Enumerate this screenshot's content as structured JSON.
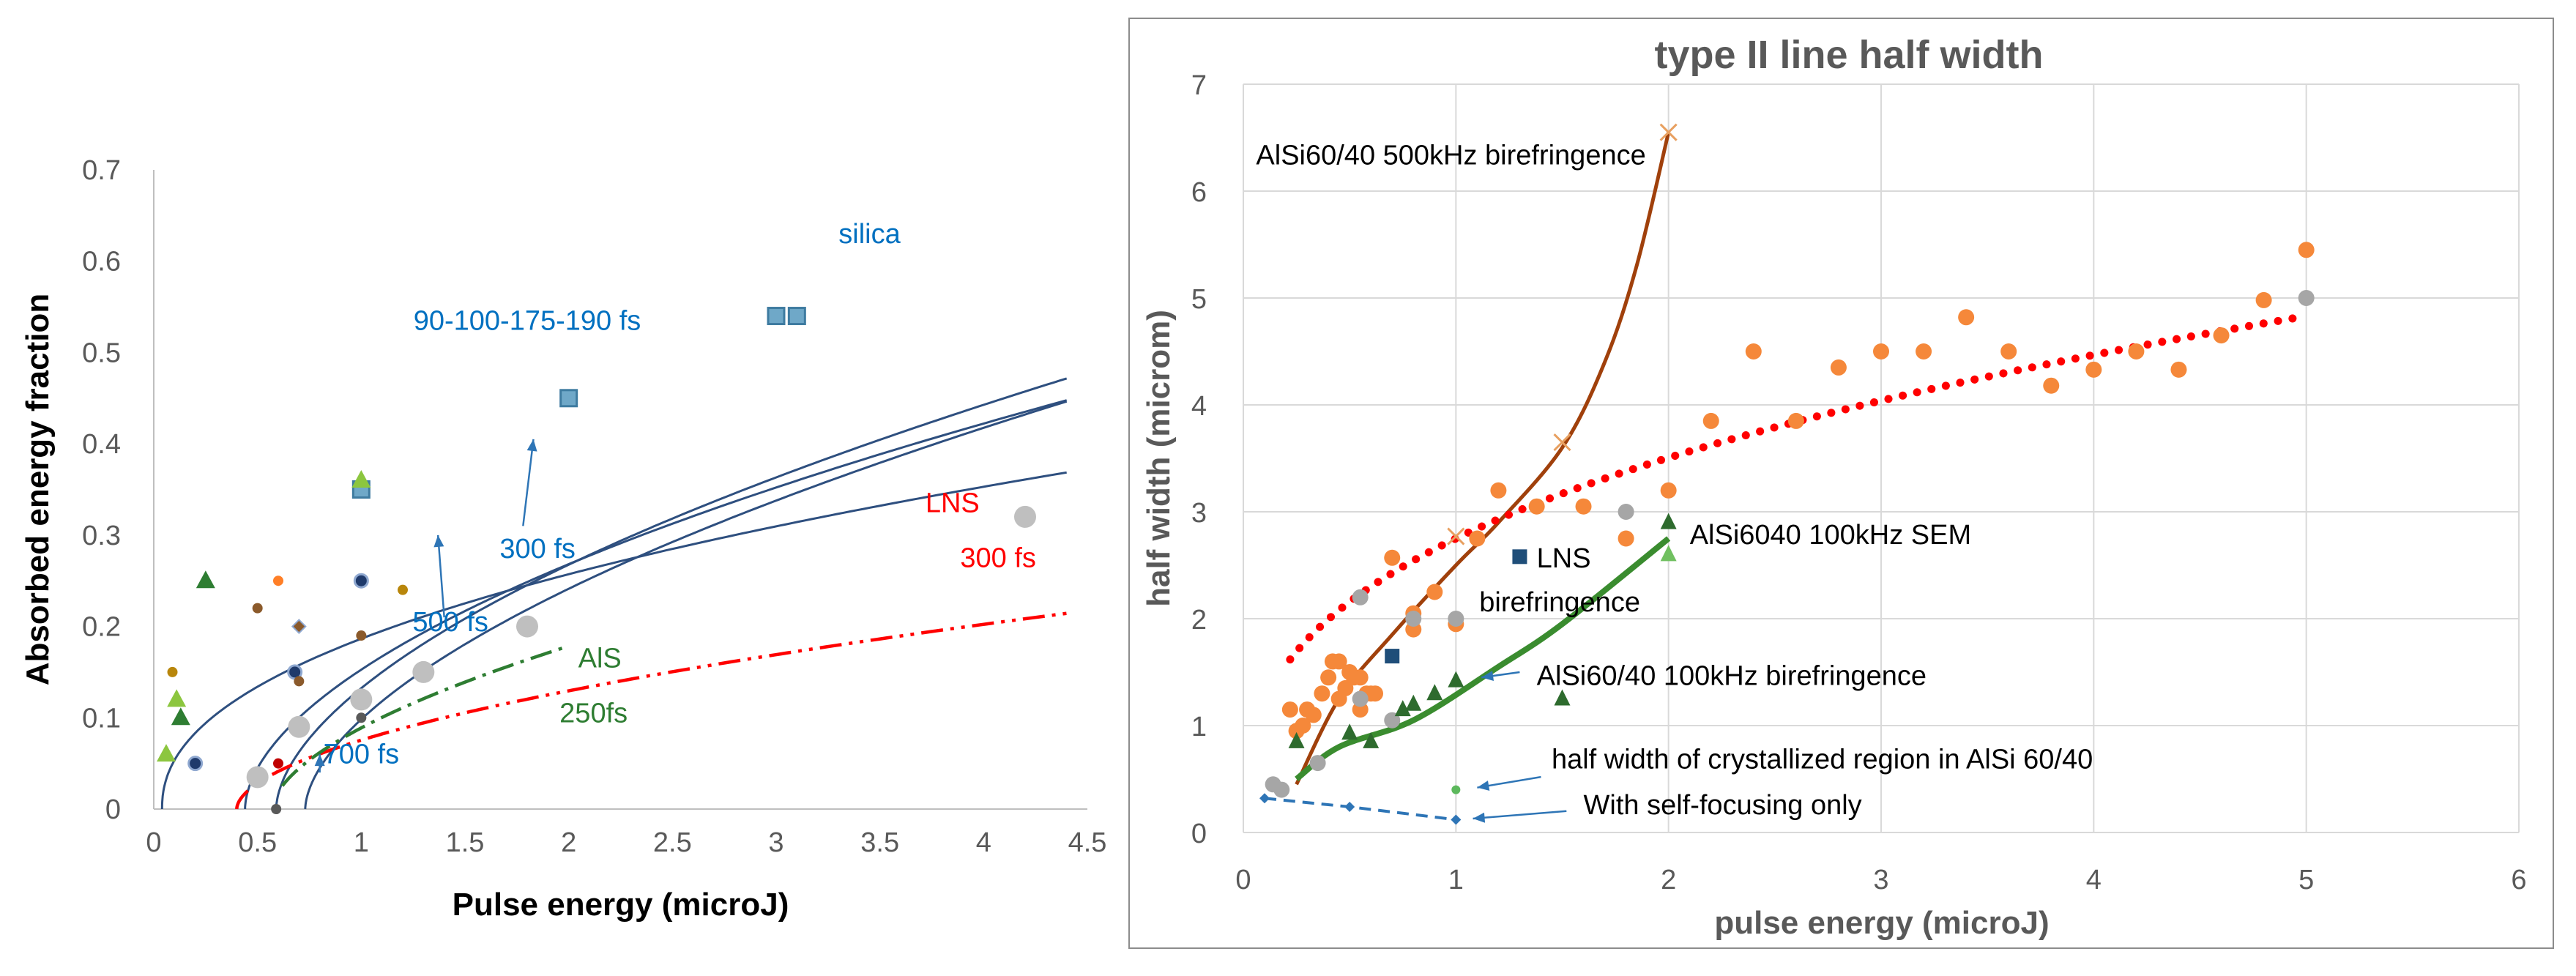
{
  "chart_data": [
    {
      "type": "scatter",
      "title": "",
      "xlabel": "Pulse energy (microJ)",
      "ylabel": "Absorbed energy fraction",
      "xlim": [
        0,
        4.5
      ],
      "ylim": [
        0,
        0.7
      ],
      "xticks": [
        "0",
        "0.5",
        "1",
        "1.5",
        "2",
        "2.5",
        "3",
        "3.5",
        "4",
        "4.5"
      ],
      "yticks": [
        "0",
        "0.1",
        "0.2",
        "0.3",
        "0.4",
        "0.5",
        "0.6",
        "0.7"
      ],
      "curves": [
        {
          "name": "90 fs",
          "color": "#2E4F7F",
          "x0": 0.04,
          "a": 0.19,
          "p": 0.45
        },
        {
          "name": "175 fs",
          "color": "#2E4F7F",
          "x0": 0.44,
          "a": 0.21,
          "p": 0.55
        },
        {
          "name": "190 fs",
          "color": "#2E4F7F",
          "x0": 0.59,
          "a": 0.22,
          "p": 0.57
        },
        {
          "name": "700 fs",
          "color": "#2E4F7F",
          "x0": 0.73,
          "a": 0.21,
          "p": 0.58
        },
        {
          "name": "LNS 300 fs",
          "color": "#FF0000",
          "dash": "dashdotdot",
          "x0": 0.4,
          "a": 0.1,
          "p": 0.55,
          "xmax": 4.4
        },
        {
          "name": "AlS 250fs",
          "color": "#2E7D32",
          "dash": "dashdot",
          "x0": 0.57,
          "a": 0.145,
          "p": 0.58,
          "xstart": 0.62,
          "xmax": 2.0
        }
      ],
      "points": [
        {
          "series": "silica",
          "x": 3.0,
          "y": 0.54,
          "marker": "square",
          "color": "#6FA8C8"
        },
        {
          "series": "silica",
          "x": 3.1,
          "y": 0.54,
          "marker": "square",
          "color": "#6FA8C8"
        },
        {
          "series": "silica",
          "x": 2.0,
          "y": 0.45,
          "marker": "square",
          "color": "#6FA8C8"
        },
        {
          "series": "silica",
          "x": 1.0,
          "y": 0.35,
          "marker": "square",
          "color": "#6FA8C8"
        },
        {
          "series": "green",
          "x": 1.0,
          "y": 0.36,
          "marker": "triangle",
          "color": "#8CC63F"
        },
        {
          "series": "green",
          "x": 0.25,
          "y": 0.25,
          "marker": "triangle",
          "color": "#2E7D32"
        },
        {
          "series": "green",
          "x": 0.13,
          "y": 0.1,
          "marker": "triangle",
          "color": "#2E7D32"
        },
        {
          "series": "green",
          "x": 0.06,
          "y": 0.06,
          "marker": "triangle",
          "color": "#8CC63F"
        },
        {
          "series": "green",
          "x": 0.11,
          "y": 0.12,
          "marker": "triangle",
          "color": "#8CC63F"
        },
        {
          "series": "dots",
          "x": 0.09,
          "y": 0.15,
          "marker": "dot",
          "color": "#B8860B"
        },
        {
          "series": "dots",
          "x": 0.2,
          "y": 0.05,
          "marker": "ringdot",
          "color": "#1F3A6B"
        },
        {
          "series": "dots",
          "x": 0.5,
          "y": 0.22,
          "marker": "dot",
          "color": "#8B5A2B"
        },
        {
          "series": "dots",
          "x": 0.6,
          "y": 0.25,
          "marker": "dot",
          "color": "#FF7F27"
        },
        {
          "series": "dots",
          "x": 0.7,
          "y": 0.2,
          "marker": "diamond",
          "color": "#8B5A2B"
        },
        {
          "series": "dots",
          "x": 0.68,
          "y": 0.15,
          "marker": "ringdot",
          "color": "#1F3A6B"
        },
        {
          "series": "dots",
          "x": 0.7,
          "y": 0.14,
          "marker": "dot",
          "color": "#8B5A2B"
        },
        {
          "series": "dots",
          "x": 0.6,
          "y": 0.05,
          "marker": "dot",
          "color": "#C00000"
        },
        {
          "series": "dots",
          "x": 0.59,
          "y": 0.0,
          "marker": "dot",
          "color": "#595959"
        },
        {
          "series": "dots",
          "x": 1.0,
          "y": 0.25,
          "marker": "ringdot",
          "color": "#1F3A6B"
        },
        {
          "series": "dots",
          "x": 1.0,
          "y": 0.19,
          "marker": "dot",
          "color": "#8B5A2B"
        },
        {
          "series": "dots",
          "x": 1.0,
          "y": 0.1,
          "marker": "dot",
          "color": "#595959"
        },
        {
          "series": "dots",
          "x": 1.2,
          "y": 0.24,
          "marker": "dot",
          "color": "#B8860B"
        },
        {
          "series": "gray",
          "x": 0.5,
          "y": 0.035,
          "marker": "bigdot",
          "color": "#BFBFBF"
        },
        {
          "series": "gray",
          "x": 0.7,
          "y": 0.09,
          "marker": "bigdot",
          "color": "#BFBFBF"
        },
        {
          "series": "gray",
          "x": 1.0,
          "y": 0.12,
          "marker": "bigdot",
          "color": "#BFBFBF"
        },
        {
          "series": "gray",
          "x": 1.3,
          "y": 0.15,
          "marker": "bigdot",
          "color": "#BFBFBF"
        },
        {
          "series": "gray",
          "x": 1.8,
          "y": 0.2,
          "marker": "bigdot",
          "color": "#BFBFBF"
        },
        {
          "series": "gray",
          "x": 4.2,
          "y": 0.32,
          "marker": "bigdot",
          "color": "#BFBFBF"
        }
      ],
      "arrows": [
        {
          "from": [
            1.78,
            0.31
          ],
          "to": [
            1.83,
            0.405
          ],
          "color": "#2E75B6"
        },
        {
          "from": [
            1.4,
            0.21
          ],
          "to": [
            1.37,
            0.3
          ],
          "color": "#2E75B6"
        },
        {
          "from": [
            0.8,
            0.04
          ],
          "to": [
            0.8,
            0.06
          ],
          "color": "#2E75B6"
        }
      ],
      "annotations": [
        {
          "text": "silica",
          "x": 3.45,
          "y": 0.62,
          "color": "#0070C0"
        },
        {
          "text": "90-100-175-190 fs",
          "x": 1.8,
          "y": 0.525,
          "color": "#0070C0"
        },
        {
          "text": "300 fs",
          "x": 1.85,
          "y": 0.275,
          "color": "#0070C0"
        },
        {
          "text": "500 fs",
          "x": 1.43,
          "y": 0.195,
          "color": "#0070C0"
        },
        {
          "text": "700 fs",
          "x": 1.0,
          "y": 0.05,
          "color": "#0070C0"
        },
        {
          "text": "LNS",
          "x": 3.85,
          "y": 0.325,
          "color": "#FF0000"
        },
        {
          "text": "300 fs",
          "x": 4.07,
          "y": 0.265,
          "color": "#FF0000"
        },
        {
          "text": "AlS",
          "x": 2.15,
          "y": 0.155,
          "color": "#2E7D32"
        },
        {
          "text": "250fs",
          "x": 2.12,
          "y": 0.095,
          "color": "#2E7D32"
        }
      ]
    },
    {
      "type": "scatter",
      "title": "type II line half width",
      "xlabel": "pulse energy (microJ)",
      "ylabel": "half width (microm)",
      "xlim": [
        0,
        6
      ],
      "ylim": [
        0,
        7
      ],
      "xticks": [
        "0",
        "1",
        "2",
        "3",
        "4",
        "5",
        "6"
      ],
      "yticks": [
        "0",
        "1",
        "2",
        "3",
        "4",
        "5",
        "6",
        "7"
      ],
      "grid": true,
      "orange_points": [
        [
          0.22,
          1.15
        ],
        [
          0.25,
          0.95
        ],
        [
          0.28,
          1.0
        ],
        [
          0.3,
          1.15
        ],
        [
          0.33,
          1.1
        ],
        [
          0.37,
          1.3
        ],
        [
          0.4,
          1.45
        ],
        [
          0.42,
          1.6
        ],
        [
          0.45,
          1.6
        ],
        [
          0.45,
          1.25
        ],
        [
          0.48,
          1.35
        ],
        [
          0.5,
          1.5
        ],
        [
          0.52,
          1.45
        ],
        [
          0.55,
          1.15
        ],
        [
          0.55,
          1.45
        ],
        [
          0.58,
          1.3
        ],
        [
          0.6,
          1.3
        ],
        [
          0.62,
          1.3
        ],
        [
          0.7,
          2.57
        ],
        [
          0.8,
          1.9
        ],
        [
          0.8,
          2.05
        ],
        [
          0.9,
          2.25
        ],
        [
          1.0,
          1.95
        ],
        [
          1.1,
          2.75
        ],
        [
          1.2,
          3.2
        ],
        [
          1.38,
          3.05
        ],
        [
          1.6,
          3.05
        ],
        [
          1.8,
          2.75
        ],
        [
          2.0,
          3.2
        ],
        [
          2.2,
          3.85
        ],
        [
          2.4,
          4.5
        ],
        [
          2.6,
          3.85
        ],
        [
          2.8,
          4.35
        ],
        [
          3.0,
          4.5
        ],
        [
          3.2,
          4.5
        ],
        [
          3.4,
          4.82
        ],
        [
          3.6,
          4.5
        ],
        [
          3.8,
          4.18
        ],
        [
          4.0,
          4.33
        ],
        [
          4.2,
          4.5
        ],
        [
          4.4,
          4.33
        ],
        [
          4.6,
          4.65
        ],
        [
          4.8,
          4.98
        ],
        [
          5.0,
          5.45
        ]
      ],
      "gray_points": [
        [
          0.14,
          0.45
        ],
        [
          0.18,
          0.4
        ],
        [
          0.35,
          0.65
        ],
        [
          0.55,
          2.2
        ],
        [
          0.55,
          1.25
        ],
        [
          0.8,
          2.0
        ],
        [
          1.0,
          2.0
        ],
        [
          0.7,
          1.05
        ],
        [
          1.8,
          3.0
        ],
        [
          5.0,
          5.0
        ]
      ],
      "green_points": [
        [
          0.25,
          0.85
        ],
        [
          0.5,
          0.93
        ],
        [
          0.6,
          0.85
        ],
        [
          0.75,
          1.15
        ],
        [
          0.8,
          1.2
        ],
        [
          0.9,
          1.3
        ],
        [
          1.0,
          1.42
        ],
        [
          1.5,
          1.25
        ],
        [
          2.0,
          2.9
        ]
      ],
      "lightgreen_points": [
        [
          2.0,
          2.6
        ]
      ],
      "small_green_point": [
        1.0,
        0.4
      ],
      "lns_points": [
        [
          0.7,
          1.65
        ],
        [
          1.3,
          2.58
        ]
      ],
      "x_points": [
        [
          1.0,
          2.77
        ],
        [
          1.5,
          3.65
        ],
        [
          2.0,
          6.55
        ]
      ],
      "red_trend": {
        "color": "#FF0000",
        "a": 2.75,
        "p": 0.35,
        "xmin": 0.22,
        "xmax": 5.0
      },
      "brown_curve": {
        "color": "#A0400B",
        "points": [
          [
            0.25,
            0.45
          ],
          [
            0.45,
            1.25
          ],
          [
            0.7,
            1.85
          ],
          [
            1.0,
            2.5
          ],
          [
            1.2,
            2.9
          ],
          [
            1.5,
            3.6
          ],
          [
            1.7,
            4.4
          ],
          [
            1.85,
            5.3
          ],
          [
            2.0,
            6.55
          ]
        ]
      },
      "green_trend": {
        "color": "#3A8C2F",
        "points": [
          [
            0.25,
            0.5
          ],
          [
            0.45,
            0.8
          ],
          [
            0.8,
            1.05
          ],
          [
            1.2,
            1.55
          ],
          [
            1.5,
            1.95
          ],
          [
            2.0,
            2.75
          ]
        ]
      },
      "blue_dashed": {
        "color": "#2E75B6",
        "points": [
          [
            0.1,
            0.32
          ],
          [
            0.5,
            0.24
          ],
          [
            1.0,
            0.12
          ]
        ]
      },
      "annotations": [
        {
          "text": "AlSi60/40 500kHz birefringence",
          "x": 0.06,
          "y": 6.25,
          "color": "#000"
        },
        {
          "text": "LNS",
          "x": 1.38,
          "y": 2.48,
          "color": "#000"
        },
        {
          "text": "birefringence",
          "x": 1.11,
          "y": 2.07,
          "color": "#000"
        },
        {
          "text": "AlSi6040 100kHz SEM",
          "x": 2.1,
          "y": 2.7,
          "color": "#000"
        },
        {
          "text": "AlSi60/40 100kHz birefringence",
          "x": 1.38,
          "y": 1.38,
          "color": "#000"
        },
        {
          "text": "half width of crystallized region in AlSi 60/40",
          "x": 1.45,
          "y": 0.6,
          "color": "#000"
        },
        {
          "text": "With self-focusing only",
          "x": 1.6,
          "y": 0.17,
          "color": "#000"
        }
      ],
      "arrows": [
        {
          "from": [
            1.3,
            1.5
          ],
          "to": [
            1.12,
            1.45
          ],
          "color": "#2E75B6"
        },
        {
          "from": [
            1.4,
            0.52
          ],
          "to": [
            1.1,
            0.42
          ],
          "color": "#2E75B6"
        },
        {
          "from": [
            1.52,
            0.2
          ],
          "to": [
            1.08,
            0.13
          ],
          "color": "#2E75B6"
        }
      ]
    }
  ]
}
